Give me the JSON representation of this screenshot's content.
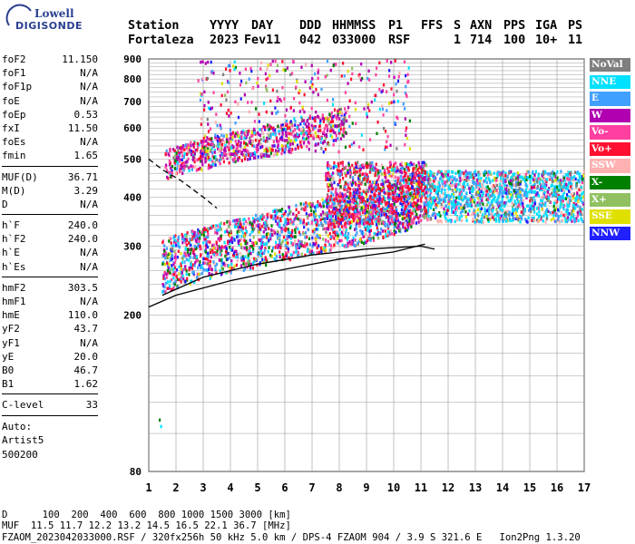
{
  "logo": {
    "line1": "Lowell",
    "line2": "DIGISONDE"
  },
  "header": {
    "labels": [
      "Station",
      "YYYY",
      "DAY",
      "DDD",
      "HHMMSS",
      "P1",
      "FFS",
      "S",
      "AXN",
      "PPS",
      "IGA",
      "PS"
    ],
    "values": [
      "Fortaleza",
      "2023",
      "Fev11",
      "042",
      "033000",
      "RSF",
      "1",
      "714",
      "100",
      "10+",
      "11"
    ]
  },
  "params": {
    "groups": [
      [
        {
          "name": "foF2",
          "value": "11.150"
        },
        {
          "name": "foF1",
          "value": "N/A"
        },
        {
          "name": "foF1p",
          "value": "N/A"
        },
        {
          "name": "foE",
          "value": "N/A"
        },
        {
          "name": "foEp",
          "value": "0.53"
        },
        {
          "name": "fxI",
          "value": "11.50"
        },
        {
          "name": "foEs",
          "value": "N/A"
        },
        {
          "name": "fmin",
          "value": "1.65"
        }
      ],
      [
        {
          "name": "MUF(D)",
          "value": "36.71"
        },
        {
          "name": "M(D)",
          "value": "3.29"
        },
        {
          "name": "D",
          "value": "N/A"
        }
      ],
      [
        {
          "name": "h`F",
          "value": "240.0"
        },
        {
          "name": "h`F2",
          "value": "240.0"
        },
        {
          "name": "h`E",
          "value": "N/A"
        },
        {
          "name": "h`Es",
          "value": "N/A"
        }
      ],
      [
        {
          "name": "hmF2",
          "value": "303.5"
        },
        {
          "name": "hmF1",
          "value": "N/A"
        },
        {
          "name": "hmE",
          "value": "110.0"
        },
        {
          "name": "yF2",
          "value": "43.7"
        },
        {
          "name": "yF1",
          "value": "N/A"
        },
        {
          "name": "yE",
          "value": "20.0"
        },
        {
          "name": "B0",
          "value": "46.7"
        },
        {
          "name": "B1",
          "value": "1.62"
        }
      ],
      [
        {
          "name": "C-level",
          "value": "33"
        }
      ]
    ],
    "auto_lines": [
      "Auto:",
      "Artist5",
      "500200"
    ]
  },
  "legend": [
    {
      "label": "NoVal",
      "color": "#7f7f7f",
      "text_color": "#ffffff"
    },
    {
      "label": "NNE",
      "color": "#00e0ff",
      "text_color": "#ffffff"
    },
    {
      "label": "E",
      "color": "#40a0ff",
      "text_color": "#ffffff"
    },
    {
      "label": "W",
      "color": "#b000b0",
      "text_color": "#ffffff"
    },
    {
      "label": "Vo-",
      "color": "#ff40a0",
      "text_color": "#ffffff"
    },
    {
      "label": "Vo+",
      "color": "#ff1030",
      "text_color": "#ffffff"
    },
    {
      "label": "SSW",
      "color": "#ffb0b0",
      "text_color": "#ffffff"
    },
    {
      "label": "X-",
      "color": "#008000",
      "text_color": "#ffffff"
    },
    {
      "label": "X+",
      "color": "#90c060",
      "text_color": "#ffffff"
    },
    {
      "label": "SSE",
      "color": "#e0e000",
      "text_color": "#ffffff"
    },
    {
      "label": "NNW",
      "color": "#2020ff",
      "text_color": "#ffffff"
    }
  ],
  "footer": {
    "d_line": "D      100  200  400  600  800 1000 1500 3000 [km]",
    "muf_line": "MUF  11.5 11.7 12.2 13.2 14.5 16.5 22.1 36.7 [MHz]",
    "info_line": "FZAOM_2023042033000.RSF / 320fx256h 50 kHz 5.0 km / DPS-4 FZAOM 904 / 3.9 S 321.6 E   Ion2Png 1.3.20"
  },
  "chart_data": {
    "type": "scatter",
    "x_ticks": [
      "1",
      "2",
      "3",
      "4",
      "5",
      "6",
      "7",
      "8",
      "9",
      "10",
      "11",
      "12",
      "13",
      "14",
      "15",
      "16",
      "17"
    ],
    "y_ticks": [
      "80",
      "200",
      "300",
      "400",
      "500",
      "600",
      "700",
      "800",
      "900"
    ],
    "xlim": [
      1,
      17
    ],
    "y_scale": "log",
    "ylim": [
      80,
      900
    ],
    "grid": true,
    "echo_traces": [
      {
        "name": "F2 O-trace",
        "x": [
          1.5,
          3,
          5,
          7,
          9,
          10.5,
          11.15
        ],
        "y": [
          240,
          258,
          278,
          300,
          320,
          345,
          380
        ]
      },
      {
        "name": "F2 second hop",
        "x": [
          1.6,
          2.5,
          4,
          6,
          7.5,
          8.3
        ],
        "y": [
          480,
          500,
          530,
          560,
          590,
          620
        ]
      },
      {
        "name": "Spread F",
        "x": [
          11.2,
          12,
          13,
          14,
          15,
          16,
          17
        ],
        "y": [
          330,
          420,
          380,
          400,
          380,
          410,
          390
        ]
      }
    ],
    "profile_curve": {
      "x": [
        1.0,
        2,
        4,
        6,
        8,
        10,
        11.15
      ],
      "y": [
        210,
        225,
        245,
        262,
        278,
        290,
        303.5
      ]
    },
    "x_trace_curve": {
      "x": [
        1.5,
        3,
        5,
        7,
        9,
        11,
        11.5
      ],
      "y": [
        225,
        250,
        270,
        285,
        295,
        300,
        295
      ]
    },
    "dashed_curve": {
      "x": [
        1.0,
        1.5,
        2.2,
        3.0,
        3.5
      ],
      "y": [
        500,
        470,
        440,
        400,
        375
      ]
    }
  }
}
